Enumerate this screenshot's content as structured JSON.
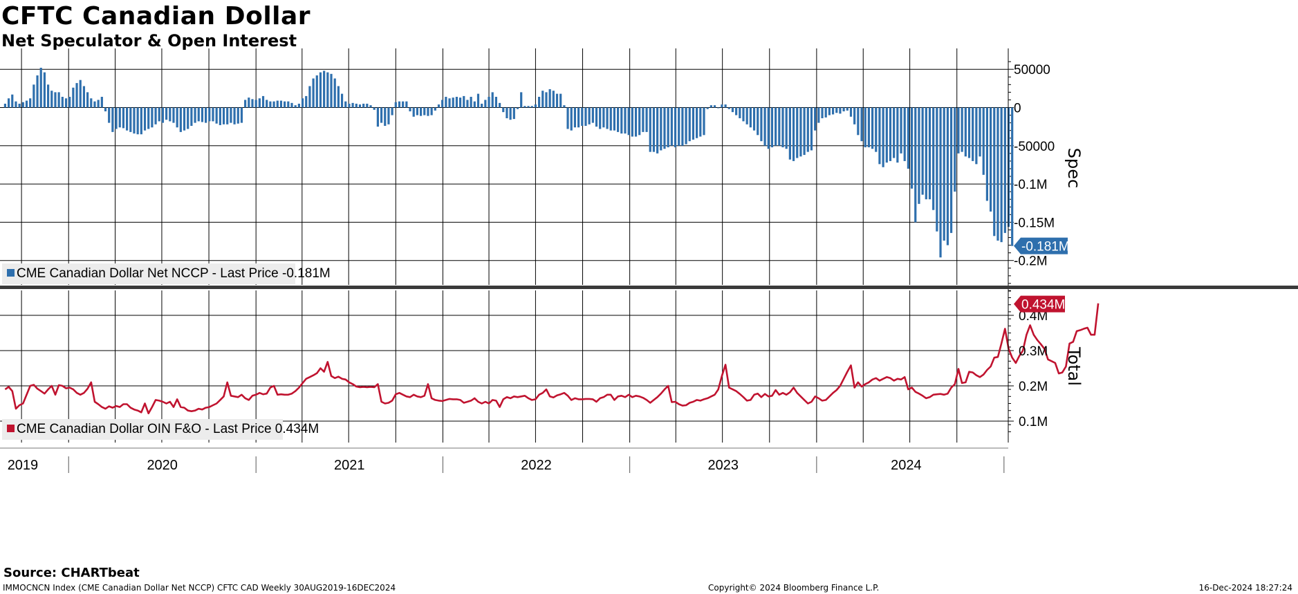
{
  "title": "CFTC Canadian Dollar",
  "subtitle": "Net Speculator & Open Interest",
  "source": "Source: CHARTbeat",
  "footer": {
    "left": "IMMOCNCN Index (CME Canadian Dollar Net NCCP) CFTC CAD  Weekly 30AUG2019-16DEC2024",
    "center": "Copyright© 2024 Bloomberg Finance L.P.",
    "right": "16-Dec-2024 18:27:24"
  },
  "colors": {
    "spec": "#2e6fad",
    "total": "#c0132f",
    "grid": "#000000"
  },
  "chart_data": [
    {
      "type": "bar",
      "ylabel": "Spec",
      "yticks": [
        "50000",
        "0",
        "-50000",
        "-0.1M",
        "-0.15M",
        "-0.2M"
      ],
      "ylim": [
        -250000,
        75000
      ],
      "legend": "CME Canadian Dollar Net NCCP - Last Price -0.181M",
      "last_label": "-0.181M",
      "start": "2019-08-30",
      "frequency": "weekly",
      "x_labels": [
        "2019",
        "2020",
        "2021",
        "2022",
        "2023",
        "2024"
      ],
      "values": [
        5000,
        12000,
        17000,
        8000,
        5000,
        7000,
        9000,
        12000,
        30000,
        42000,
        52000,
        46000,
        30000,
        22000,
        20000,
        20000,
        14000,
        12000,
        14000,
        26000,
        32000,
        36000,
        28000,
        20000,
        12000,
        8000,
        10000,
        14000,
        -5000,
        -20000,
        -32000,
        -28000,
        -26000,
        -27000,
        -30000,
        -32000,
        -34000,
        -35000,
        -35000,
        -30000,
        -28000,
        -26000,
        -22000,
        -18000,
        -20000,
        -16000,
        -18000,
        -20000,
        -26000,
        -32000,
        -30000,
        -28000,
        -24000,
        -20000,
        -18000,
        -19000,
        -20000,
        -18000,
        -18000,
        -21000,
        -23000,
        -22000,
        -22000,
        -20000,
        -22000,
        -21000,
        -20000,
        10000,
        13000,
        11000,
        10000,
        12000,
        15000,
        10000,
        8000,
        8000,
        9000,
        9000,
        8000,
        8000,
        6000,
        3000,
        5000,
        12000,
        15000,
        28000,
        38000,
        42000,
        46000,
        48000,
        46000,
        44000,
        38000,
        28000,
        18000,
        8000,
        5000,
        6000,
        5000,
        4000,
        5000,
        5000,
        3000,
        -3000,
        -25000,
        -20000,
        -24000,
        -22000,
        -10000,
        7000,
        8000,
        8000,
        8000,
        -5000,
        -12000,
        -10000,
        -11000,
        -10000,
        -11000,
        -10000,
        -4000,
        4000,
        10000,
        14000,
        12000,
        13000,
        14000,
        13000,
        15000,
        10000,
        14000,
        8000,
        18000,
        5000,
        10000,
        14000,
        20000,
        14000,
        6000,
        -6000,
        -14000,
        -16000,
        -15000,
        -2000,
        20000,
        2000,
        2000,
        2000,
        4000,
        14000,
        22000,
        20000,
        24000,
        22000,
        18000,
        18000,
        3000,
        -28000,
        -30000,
        -26000,
        -26000,
        -24000,
        -24000,
        -22000,
        -20000,
        -25000,
        -28000,
        -26000,
        -28000,
        -30000,
        -30000,
        -32000,
        -34000,
        -34000,
        -36000,
        -38000,
        -38000,
        -36000,
        -32000,
        -32000,
        -58000,
        -58000,
        -60000,
        -56000,
        -54000,
        -52000,
        -50000,
        -52000,
        -50000,
        -50000,
        -48000,
        -44000,
        -42000,
        -40000,
        -38000,
        -36000,
        -2000,
        3000,
        3000,
        0,
        4000,
        4000,
        -2000,
        -6000,
        -10000,
        -14000,
        -18000,
        -22000,
        -26000,
        -30000,
        -36000,
        -44000,
        -50000,
        -54000,
        -52000,
        -50000,
        -50000,
        -52000,
        -54000,
        -68000,
        -70000,
        -66000,
        -64000,
        -62000,
        -58000,
        -56000,
        -30000,
        -20000,
        -14000,
        -13000,
        -10000,
        -9000,
        -7000,
        -8000,
        -5000,
        -4000,
        -12000,
        -22000,
        -36000,
        -44000,
        -52000,
        -52000,
        -54000,
        -58000,
        -74000,
        -78000,
        -72000,
        -70000,
        -66000,
        -72000,
        -60000,
        -70000,
        -80000,
        -106000,
        -150000,
        -126000,
        -114000,
        -120000,
        -120000,
        -134000,
        -162000,
        -196000,
        -174000,
        -180000,
        -164000,
        -110000,
        -60000,
        -58000,
        -64000,
        -66000,
        -70000,
        -74000,
        -64000,
        -88000,
        -122000,
        -136000,
        -168000,
        -174000,
        -176000,
        -164000,
        -156000,
        -181000
      ]
    },
    {
      "type": "line",
      "ylabel": "Total",
      "yticks": [
        "0.4M",
        "0.3M",
        "0.2M",
        "0.1M"
      ],
      "ylim": [
        50000,
        480000
      ],
      "legend": "CME Canadian Dollar OIN F&O - Last Price 0.434M",
      "last_label": "0.434M",
      "start": "2019-08-30",
      "frequency": "weekly",
      "values": [
        190000,
        197000,
        185000,
        135000,
        145000,
        150000,
        175000,
        200000,
        203000,
        192000,
        185000,
        178000,
        190000,
        200000,
        175000,
        202000,
        200000,
        193000,
        195000,
        190000,
        180000,
        175000,
        180000,
        192000,
        210000,
        155000,
        148000,
        140000,
        135000,
        142000,
        138000,
        143000,
        140000,
        148000,
        148000,
        138000,
        133000,
        130000,
        125000,
        150000,
        122000,
        140000,
        160000,
        158000,
        155000,
        150000,
        155000,
        140000,
        162000,
        140000,
        138000,
        130000,
        128000,
        130000,
        135000,
        133000,
        138000,
        140000,
        145000,
        150000,
        160000,
        170000,
        210000,
        172000,
        170000,
        168000,
        175000,
        165000,
        160000,
        172000,
        175000,
        180000,
        176000,
        178000,
        195000,
        200000,
        175000,
        176000,
        175000,
        175000,
        178000,
        185000,
        195000,
        208000,
        220000,
        225000,
        230000,
        236000,
        250000,
        240000,
        268000,
        228000,
        222000,
        226000,
        220000,
        218000,
        210000,
        205000,
        198000,
        196000,
        197000,
        196000,
        197000,
        196000,
        205000,
        155000,
        150000,
        152000,
        158000,
        176000,
        180000,
        175000,
        170000,
        168000,
        175000,
        170000,
        168000,
        172000,
        205000,
        165000,
        160000,
        158000,
        157000,
        160000,
        163000,
        162000,
        162000,
        160000,
        152000,
        155000,
        158000,
        165000,
        155000,
        150000,
        155000,
        150000,
        160000,
        158000,
        140000,
        162000,
        168000,
        165000,
        170000,
        168000,
        170000,
        172000,
        165000,
        160000,
        162000,
        175000,
        180000,
        190000,
        170000,
        167000,
        173000,
        176000,
        180000,
        172000,
        160000,
        165000,
        162000,
        162000,
        163000,
        163000,
        162000,
        155000,
        165000,
        168000,
        175000,
        175000,
        160000,
        170000,
        172000,
        168000,
        175000,
        168000,
        172000,
        170000,
        166000,
        160000,
        152000,
        160000,
        168000,
        178000,
        190000,
        200000,
        154000,
        155000,
        148000,
        144000,
        145000,
        152000,
        155000,
        160000,
        158000,
        162000,
        165000,
        170000,
        175000,
        190000,
        228000,
        260000,
        195000,
        190000,
        185000,
        177000,
        168000,
        158000,
        160000,
        175000,
        178000,
        168000,
        177000,
        170000,
        172000,
        188000,
        175000,
        180000,
        175000,
        182000,
        195000,
        180000,
        170000,
        160000,
        150000,
        155000,
        170000,
        165000,
        158000,
        160000,
        170000,
        180000,
        188000,
        200000,
        220000,
        240000,
        258000,
        195000,
        210000,
        198000,
        205000,
        210000,
        218000,
        222000,
        215000,
        220000,
        225000,
        222000,
        215000,
        220000,
        218000,
        225000,
        190000,
        195000,
        183000,
        178000,
        172000,
        165000,
        168000,
        175000,
        176000,
        177000,
        175000,
        178000,
        195000,
        205000,
        248000,
        208000,
        210000,
        240000,
        238000,
        230000,
        225000,
        232000,
        245000,
        255000,
        280000,
        282000,
        320000,
        362000,
        305000,
        280000,
        265000,
        285000,
        300000,
        345000,
        372000,
        345000,
        330000,
        318000,
        305000,
        275000,
        270000,
        265000,
        235000,
        238000,
        255000,
        320000,
        325000,
        355000,
        358000,
        362000,
        365000,
        345000,
        345000,
        434000
      ]
    }
  ]
}
